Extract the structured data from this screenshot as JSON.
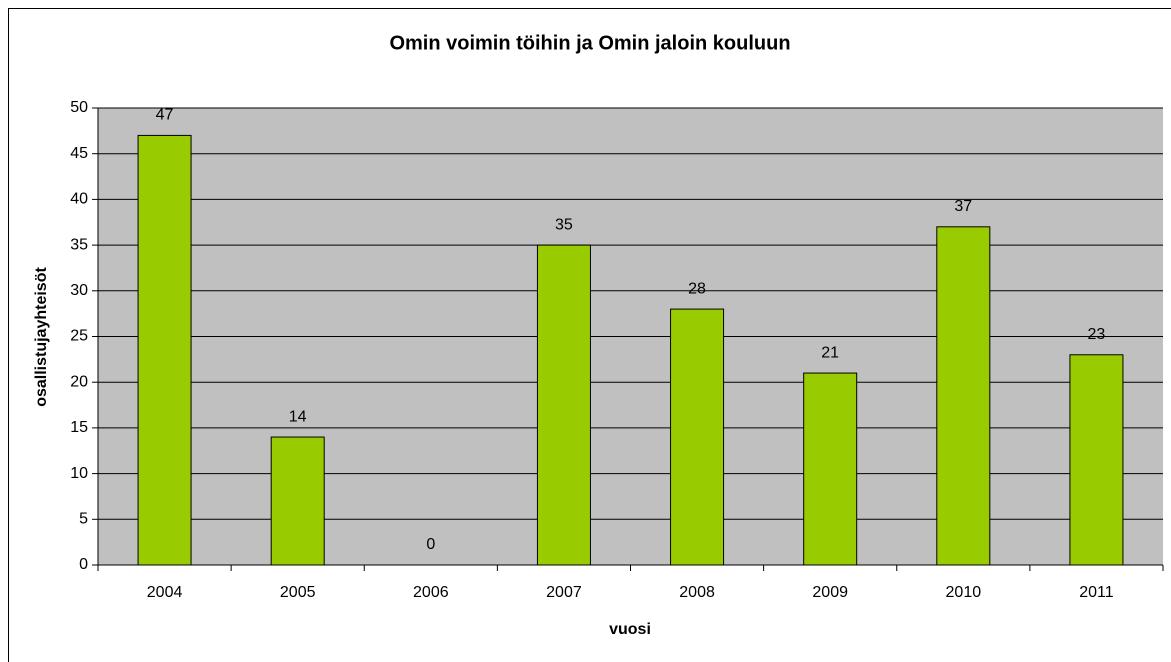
{
  "chart_data": {
    "type": "bar",
    "title": "Omin voimin töihin ja Omin jaloin kouluun",
    "xlabel": "vuosi",
    "ylabel": "osallistujayhteisöt",
    "categories": [
      "2004",
      "2005",
      "2006",
      "2007",
      "2008",
      "2009",
      "2010",
      "2011"
    ],
    "values": [
      47,
      14,
      0,
      35,
      28,
      21,
      37,
      23
    ],
    "color": "#99cc00",
    "ylim": [
      0,
      50
    ],
    "yticks": [
      0,
      5,
      10,
      15,
      20,
      25,
      30,
      35,
      40,
      45,
      50
    ],
    "grid": true
  }
}
